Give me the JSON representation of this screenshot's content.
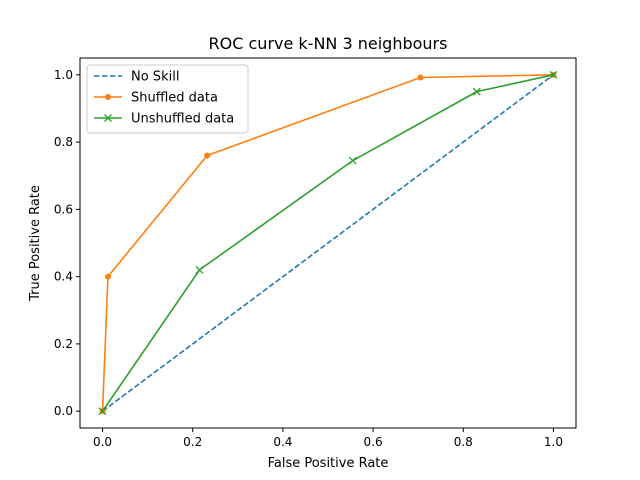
{
  "chart_data": {
    "type": "line",
    "title": "ROC curve k-NN 3 neighbours",
    "xlabel": "False Positive Rate",
    "ylabel": "True Positive Rate",
    "xlim": [
      -0.05,
      1.05
    ],
    "ylim": [
      -0.05,
      1.05
    ],
    "xticks": [
      0.0,
      0.2,
      0.4,
      0.6,
      0.8,
      1.0
    ],
    "yticks": [
      0.0,
      0.2,
      0.4,
      0.6,
      0.8,
      1.0
    ],
    "xtick_labels": [
      "0.0",
      "0.2",
      "0.4",
      "0.6",
      "0.8",
      "1.0"
    ],
    "ytick_labels": [
      "0.0",
      "0.2",
      "0.4",
      "0.6",
      "0.8",
      "1.0"
    ],
    "grid": false,
    "legend_position": "top-left",
    "series": [
      {
        "name": "No Skill",
        "color": "#1f77b4",
        "linestyle": "dashed",
        "marker": "none",
        "x": [
          0.0,
          1.0
        ],
        "y": [
          0.0,
          1.0
        ]
      },
      {
        "name": "Shuffled data",
        "color": "#ff7f0e",
        "linestyle": "solid",
        "marker": "dot",
        "x": [
          0.0,
          0.012,
          0.232,
          0.705,
          1.0
        ],
        "y": [
          0.0,
          0.4,
          0.76,
          0.992,
          1.0
        ]
      },
      {
        "name": "Unshuffled data",
        "color": "#2ca02c",
        "linestyle": "solid",
        "marker": "x",
        "x": [
          0.0,
          0.215,
          0.555,
          0.83,
          1.0
        ],
        "y": [
          0.0,
          0.42,
          0.745,
          0.95,
          1.0
        ]
      }
    ]
  }
}
